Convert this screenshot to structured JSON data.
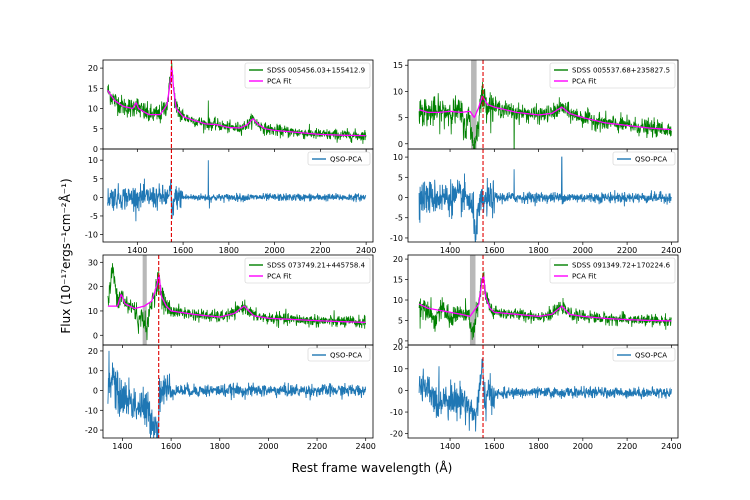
{
  "figure": {
    "ylabel": "Flux (10⁻¹⁷ergs⁻¹cm⁻²Å⁻¹)",
    "xlabel": "Rest frame wavelength (Å)"
  },
  "chart_data": [
    {
      "type": "line",
      "panel": "top-left-upper",
      "xlim": [
        1250,
        2430
      ],
      "ylim": [
        0,
        22
      ],
      "yticks": [
        0,
        5,
        10,
        15,
        20
      ],
      "xticks": [],
      "series": [
        {
          "name": "SDSS 005456.03+155412.9",
          "color": "#008000",
          "role": "spectrum"
        },
        {
          "name": "PCA Fit",
          "color": "#ff00ff",
          "role": "fit"
        }
      ],
      "vline": 1549,
      "shade": null,
      "continuum": [
        [
          1270,
          14.5
        ],
        [
          1300,
          12
        ],
        [
          1340,
          10.5
        ],
        [
          1380,
          10
        ],
        [
          1395,
          11.5
        ],
        [
          1405,
          10
        ],
        [
          1450,
          8.5
        ],
        [
          1500,
          8.5
        ],
        [
          1530,
          11
        ],
        [
          1545,
          17
        ],
        [
          1550,
          21
        ],
        [
          1558,
          15
        ],
        [
          1570,
          10
        ],
        [
          1600,
          8
        ],
        [
          1650,
          7
        ],
        [
          1700,
          6.2
        ],
        [
          1750,
          6
        ],
        [
          1800,
          5.3
        ],
        [
          1850,
          5.2
        ],
        [
          1880,
          6
        ],
        [
          1905,
          7.5
        ],
        [
          1930,
          6
        ],
        [
          1960,
          5
        ],
        [
          2000,
          4.6
        ],
        [
          2100,
          4.1
        ],
        [
          2200,
          3.6
        ],
        [
          2300,
          3.4
        ],
        [
          2400,
          3.3
        ]
      ],
      "noise": 0.9,
      "spikes": [
        [
          1710,
          12
        ]
      ],
      "legend_pos": "top-right"
    },
    {
      "type": "line",
      "panel": "top-left-lower",
      "xlim": [
        1250,
        2430
      ],
      "ylim": [
        -12,
        13
      ],
      "yticks": [
        -10,
        -5,
        0,
        5,
        10
      ],
      "xticks": [
        1400,
        1600,
        1800,
        2000,
        2200,
        2400
      ],
      "series": [
        {
          "name": "QSO-PCA",
          "color": "#1f77b4",
          "role": "residual"
        }
      ],
      "vline": 1549,
      "shade": null,
      "residual": [
        [
          1270,
          0
        ],
        [
          1540,
          0
        ],
        [
          1546,
          4
        ],
        [
          1551,
          -6
        ],
        [
          1556,
          -2
        ],
        [
          1565,
          0
        ],
        [
          2400,
          0
        ]
      ],
      "noise": 1.0,
      "spikes": [
        [
          1710,
          10
        ],
        [
          1715,
          -3
        ]
      ],
      "legend_pos": "top-right"
    },
    {
      "type": "line",
      "panel": "top-right-upper",
      "xlim": [
        1210,
        2430
      ],
      "ylim": [
        -1,
        16
      ],
      "yticks": [
        0,
        5,
        10,
        15
      ],
      "xticks": [],
      "series": [
        {
          "name": "SDSS 005537.68+235827.5",
          "color": "#008000",
          "role": "spectrum"
        },
        {
          "name": "PCA Fit",
          "color": "#ff00ff",
          "role": "fit"
        }
      ],
      "vline": 1549,
      "shade": [
        1495,
        1520
      ],
      "continuum": [
        [
          1260,
          6.5
        ],
        [
          1300,
          6
        ],
        [
          1350,
          6
        ],
        [
          1400,
          6.2
        ],
        [
          1450,
          6
        ],
        [
          1490,
          6.2
        ],
        [
          1510,
          5
        ],
        [
          1530,
          7
        ],
        [
          1545,
          9
        ],
        [
          1555,
          8.5
        ],
        [
          1570,
          7.5
        ],
        [
          1600,
          7
        ],
        [
          1700,
          6
        ],
        [
          1800,
          5.5
        ],
        [
          1860,
          5.8
        ],
        [
          1905,
          7
        ],
        [
          1940,
          5.8
        ],
        [
          2000,
          5
        ],
        [
          2100,
          4
        ],
        [
          2200,
          3.5
        ],
        [
          2300,
          3
        ],
        [
          2400,
          2.7
        ]
      ],
      "dips": [
        [
          1505,
          -5
        ],
        [
          1520,
          -3
        ],
        [
          1470,
          -3
        ]
      ],
      "noise": 1.0,
      "spikes": [
        [
          1690,
          -6
        ]
      ],
      "legend_pos": "top-right"
    },
    {
      "type": "line",
      "panel": "top-right-lower",
      "xlim": [
        1210,
        2430
      ],
      "ylim": [
        -11,
        12
      ],
      "yticks": [
        -10,
        -5,
        0,
        5,
        10
      ],
      "xticks": [
        1400,
        1600,
        1800,
        2000,
        2200,
        2400
      ],
      "series": [
        {
          "name": "QSO-PCA",
          "color": "#1f77b4",
          "role": "residual"
        }
      ],
      "vline": 1549,
      "shade": null,
      "residual": [
        [
          1260,
          0
        ],
        [
          1480,
          0
        ],
        [
          1505,
          -4
        ],
        [
          1518,
          -9
        ],
        [
          1530,
          -3
        ],
        [
          1550,
          -1
        ],
        [
          1600,
          0
        ],
        [
          2400,
          0
        ]
      ],
      "noise": 1.3,
      "spikes": [
        [
          1690,
          -9
        ],
        [
          1690,
          7
        ],
        [
          1905,
          10
        ]
      ],
      "legend_pos": "top-right"
    },
    {
      "type": "line",
      "panel": "bottom-left-upper",
      "xlim": [
        1320,
        2430
      ],
      "ylim": [
        -4,
        33
      ],
      "yticks": [
        0,
        10,
        20,
        30
      ],
      "xticks": [],
      "series": [
        {
          "name": "SDSS 073749.21+445758.4",
          "color": "#008000",
          "role": "spectrum"
        },
        {
          "name": "PCA Fit",
          "color": "#ff00ff",
          "role": "fit"
        }
      ],
      "vline": 1549,
      "shade": [
        1483,
        1500
      ],
      "continuum": [
        [
          1340,
          12
        ],
        [
          1380,
          12
        ],
        [
          1395,
          17
        ],
        [
          1410,
          13
        ],
        [
          1450,
          11
        ],
        [
          1490,
          12
        ],
        [
          1520,
          14
        ],
        [
          1540,
          20
        ],
        [
          1550,
          25
        ],
        [
          1560,
          16
        ],
        [
          1580,
          12
        ],
        [
          1600,
          10
        ],
        [
          1700,
          8.5
        ],
        [
          1800,
          7.5
        ],
        [
          1860,
          9
        ],
        [
          1900,
          12
        ],
        [
          1940,
          8
        ],
        [
          2000,
          7
        ],
        [
          2100,
          6.5
        ],
        [
          2200,
          6
        ],
        [
          2300,
          5.6
        ],
        [
          2400,
          5.3
        ]
      ],
      "dips": [
        [
          1500,
          -10
        ],
        [
          1360,
          15
        ],
        [
          1470,
          -6
        ]
      ],
      "noise": 1.6,
      "spikes": [],
      "legend_pos": "top-right"
    },
    {
      "type": "line",
      "panel": "bottom-left-lower",
      "xlim": [
        1320,
        2430
      ],
      "ylim": [
        -24,
        23
      ],
      "yticks": [
        -20,
        -10,
        0,
        10,
        20
      ],
      "xticks": [
        1400,
        1600,
        1800,
        2000,
        2200,
        2400
      ],
      "series": [
        {
          "name": "QSO-PCA",
          "color": "#1f77b4",
          "role": "residual"
        }
      ],
      "vline": 1549,
      "shade": null,
      "residual": [
        [
          1340,
          0
        ],
        [
          1360,
          8
        ],
        [
          1380,
          -3
        ],
        [
          1420,
          -4
        ],
        [
          1460,
          -8
        ],
        [
          1500,
          -10
        ],
        [
          1530,
          -16
        ],
        [
          1545,
          -20
        ],
        [
          1555,
          0
        ],
        [
          2400,
          0
        ]
      ],
      "noise": 3.2,
      "spikes": [
        [
          1345,
          20
        ],
        [
          1545,
          -23
        ]
      ],
      "legend_pos": "top-right"
    },
    {
      "type": "line",
      "panel": "bottom-right-upper",
      "xlim": [
        1210,
        2430
      ],
      "ylim": [
        -1,
        21
      ],
      "yticks": [
        0,
        5,
        10,
        15,
        20
      ],
      "xticks": [],
      "series": [
        {
          "name": "SDSS 091349.72+170224.6",
          "color": "#008000",
          "role": "spectrum"
        },
        {
          "name": "PCA Fit",
          "color": "#ff00ff",
          "role": "fit"
        }
      ],
      "vline": 1549,
      "shade": [
        1490,
        1515
      ],
      "continuum": [
        [
          1260,
          9
        ],
        [
          1300,
          8
        ],
        [
          1350,
          7.5
        ],
        [
          1400,
          7
        ],
        [
          1450,
          6.5
        ],
        [
          1490,
          6
        ],
        [
          1530,
          9
        ],
        [
          1545,
          15
        ],
        [
          1552,
          16
        ],
        [
          1560,
          11
        ],
        [
          1580,
          8
        ],
        [
          1600,
          7
        ],
        [
          1700,
          6.5
        ],
        [
          1800,
          6
        ],
        [
          1860,
          6.5
        ],
        [
          1905,
          8.5
        ],
        [
          1940,
          6.5
        ],
        [
          2000,
          6
        ],
        [
          2100,
          5.5
        ],
        [
          2200,
          5.2
        ],
        [
          2300,
          5
        ],
        [
          2400,
          4.9
        ]
      ],
      "dips": [
        [
          1505,
          -5
        ],
        [
          1330,
          -3
        ],
        [
          1400,
          -2
        ]
      ],
      "noise": 0.9,
      "spikes": [
        [
          1265,
          3
        ]
      ],
      "legend_pos": "top-right"
    },
    {
      "type": "line",
      "panel": "bottom-right-lower",
      "xlim": [
        1210,
        2430
      ],
      "ylim": [
        -22,
        21
      ],
      "yticks": [
        -20,
        -10,
        0,
        10,
        20
      ],
      "xticks": [
        1400,
        1600,
        1800,
        2000,
        2200,
        2400
      ],
      "series": [
        {
          "name": "QSO-PCA",
          "color": "#1f77b4",
          "role": "residual"
        }
      ],
      "vline": 1549,
      "shade": null,
      "residual": [
        [
          1260,
          2
        ],
        [
          1300,
          0
        ],
        [
          1340,
          -6
        ],
        [
          1380,
          -3
        ],
        [
          1420,
          -5
        ],
        [
          1460,
          -4
        ],
        [
          1500,
          -10
        ],
        [
          1515,
          -12
        ],
        [
          1530,
          -3
        ],
        [
          1545,
          10
        ],
        [
          1556,
          -4
        ],
        [
          1580,
          -2
        ],
        [
          1700,
          -1
        ],
        [
          2400,
          -1
        ]
      ],
      "noise": 2.4,
      "spikes": [
        [
          1548,
          15
        ]
      ],
      "legend_pos": "top-right"
    }
  ]
}
